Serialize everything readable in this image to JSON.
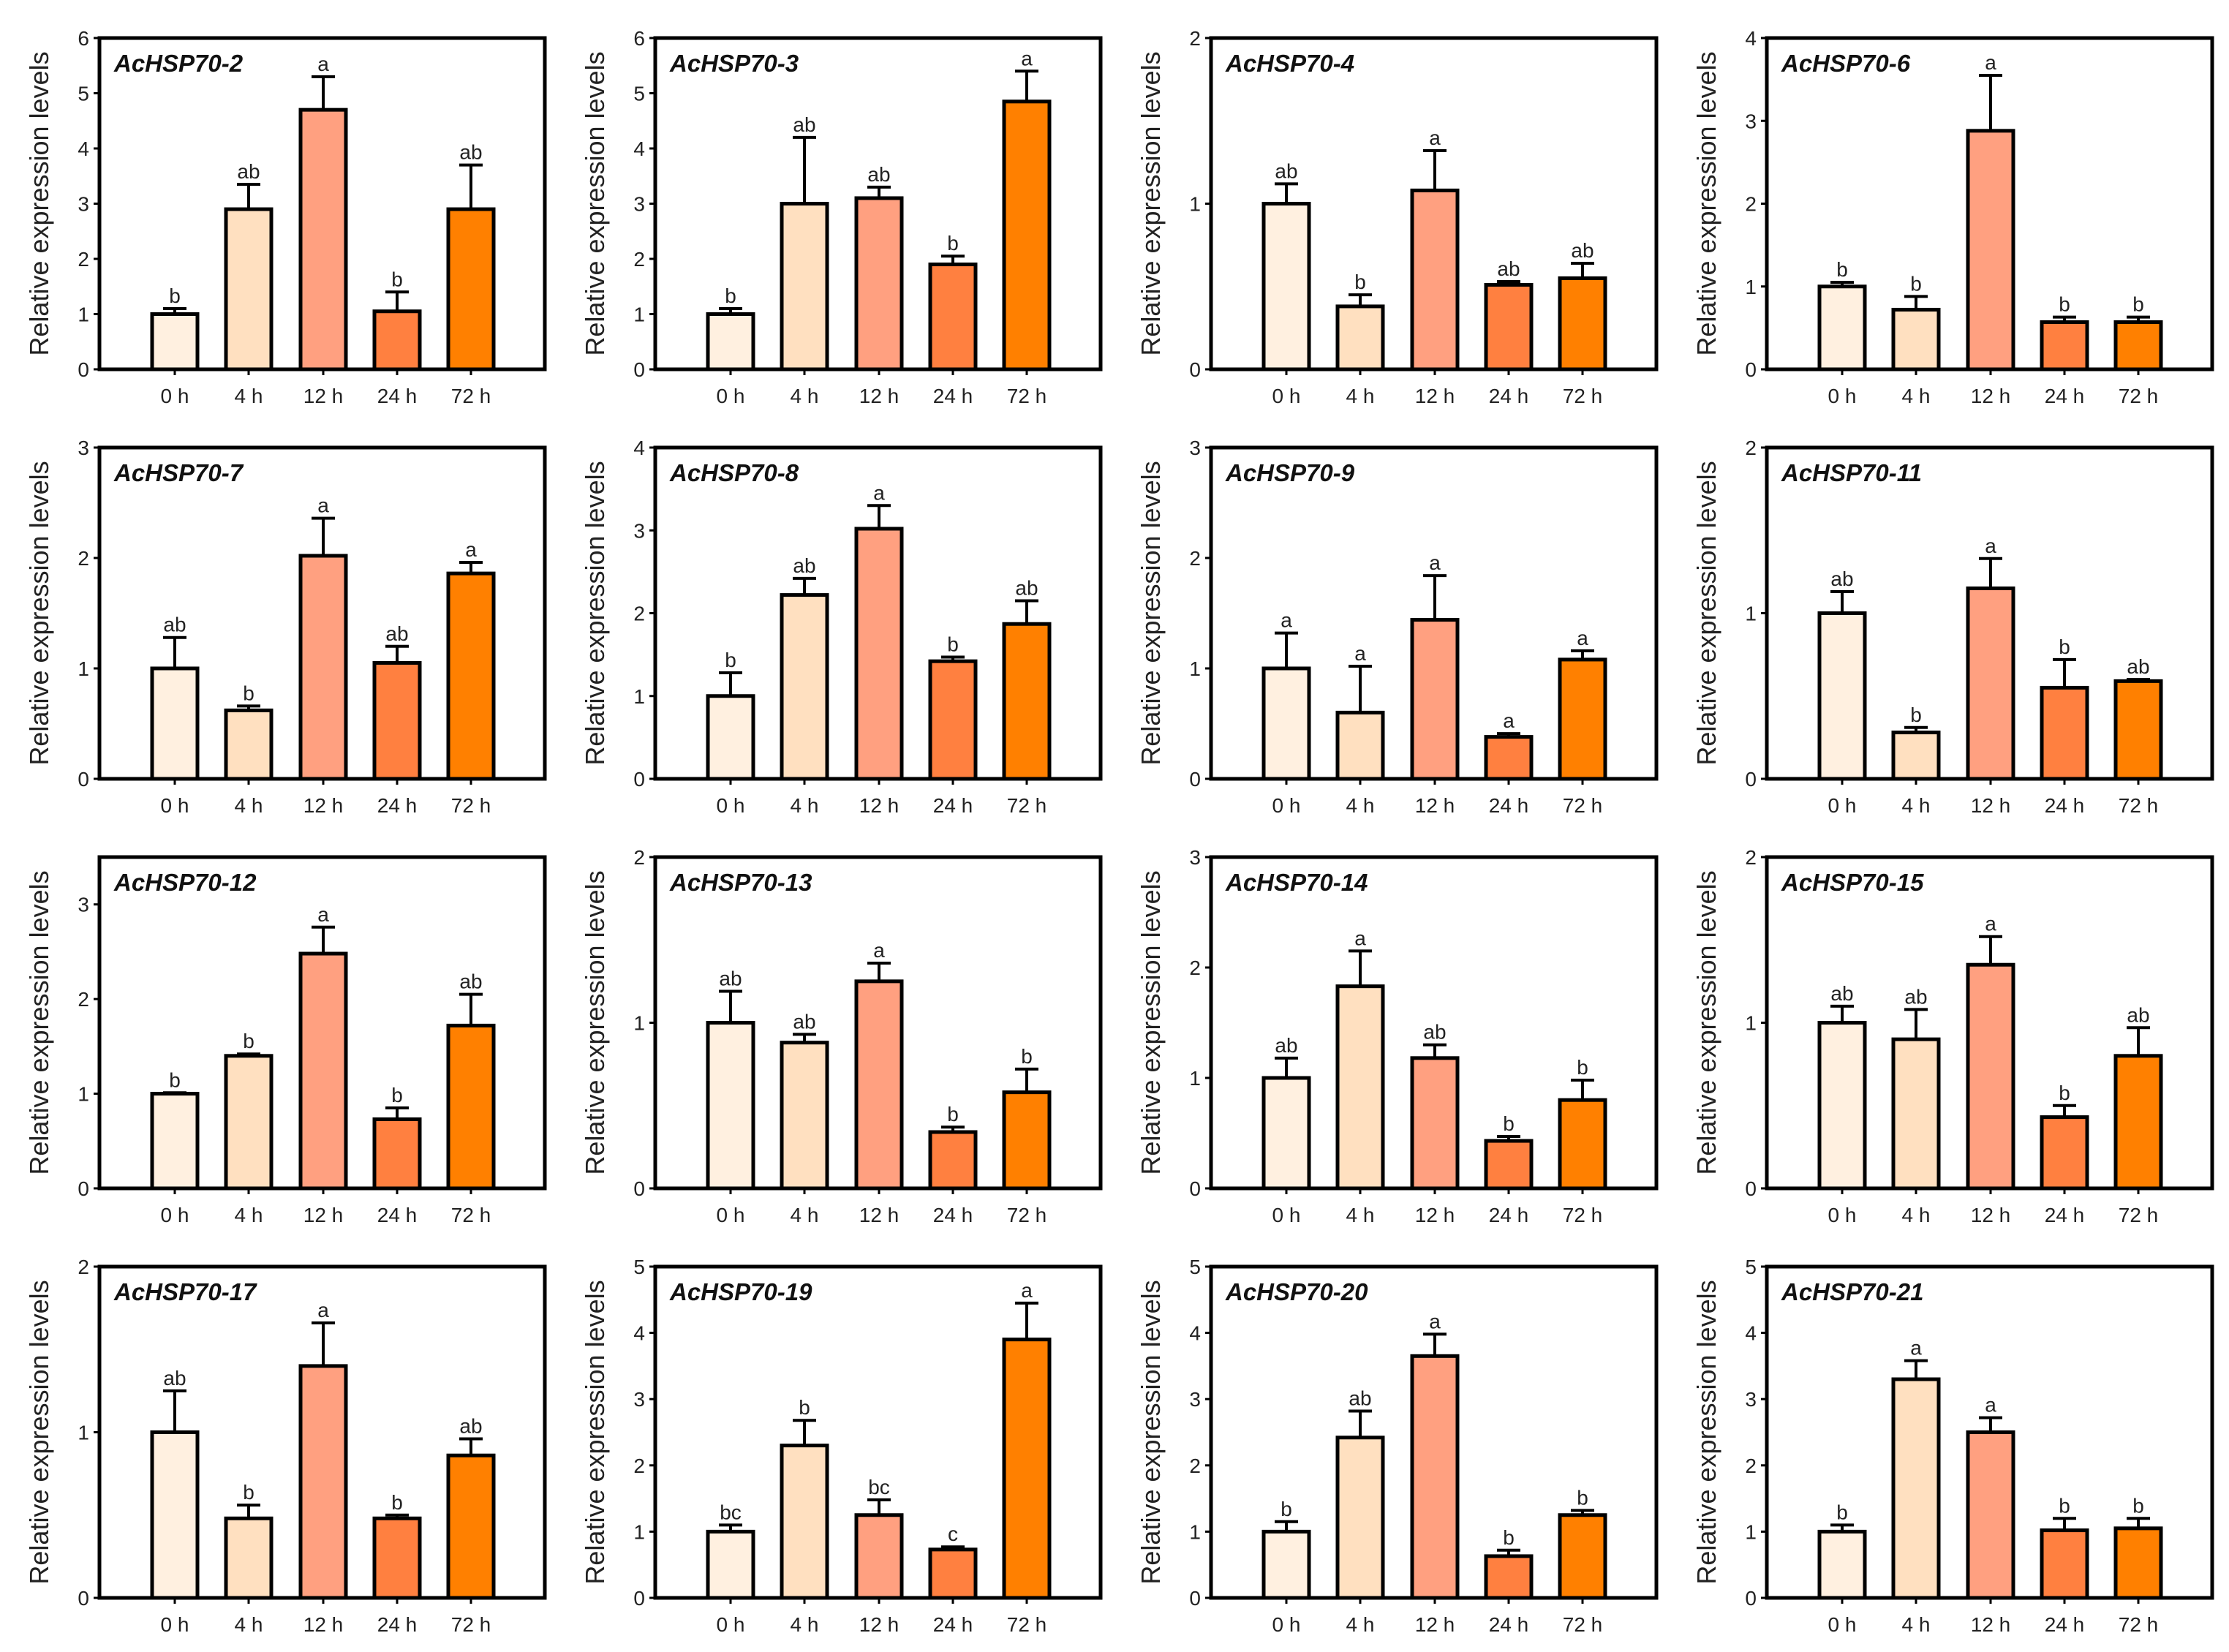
{
  "chart_data": {
    "type": "bar",
    "ylabel": "Relative expression levels",
    "categories": [
      "0 h",
      "4 h",
      "12 h",
      "24 h",
      "72 h"
    ],
    "bar_colors": [
      "#FFF0E0",
      "#FFE0C0",
      "#FFA080",
      "#FF8040",
      "#FF8000"
    ],
    "panels": [
      {
        "title": "AcHSP70-2",
        "ylim": [
          0,
          6
        ],
        "yticks": [
          0,
          1,
          2,
          3,
          4,
          5,
          6
        ],
        "values": [
          1.0,
          2.9,
          4.7,
          1.05,
          2.9
        ],
        "error_top": [
          1.1,
          3.35,
          5.3,
          1.4,
          3.7
        ],
        "letters": [
          "b",
          "ab",
          "a",
          "b",
          "ab"
        ]
      },
      {
        "title": "AcHSP70-3",
        "ylim": [
          0,
          6
        ],
        "yticks": [
          0,
          1,
          2,
          3,
          4,
          5,
          6
        ],
        "values": [
          1.0,
          3.0,
          3.1,
          1.9,
          4.85
        ],
        "error_top": [
          1.1,
          4.2,
          3.3,
          2.05,
          5.4
        ],
        "letters": [
          "b",
          "ab",
          "ab",
          "b",
          "a"
        ]
      },
      {
        "title": "AcHSP70-4",
        "ylim": [
          0,
          2
        ],
        "yticks": [
          0,
          1,
          2
        ],
        "values": [
          1.0,
          0.38,
          1.08,
          0.51,
          0.55
        ],
        "error_top": [
          1.12,
          0.45,
          1.32,
          0.53,
          0.64
        ],
        "letters": [
          "ab",
          "b",
          "a",
          "ab",
          "ab"
        ]
      },
      {
        "title": "AcHSP70-6",
        "ylim": [
          0,
          4
        ],
        "yticks": [
          0,
          1,
          2,
          3,
          4
        ],
        "values": [
          1.0,
          0.72,
          2.88,
          0.57,
          0.57
        ],
        "error_top": [
          1.05,
          0.88,
          3.55,
          0.63,
          0.63
        ],
        "letters": [
          "b",
          "b",
          "a",
          "b",
          "b"
        ]
      },
      {
        "title": "AcHSP70-7",
        "ylim": [
          0,
          3
        ],
        "yticks": [
          0,
          1,
          2,
          3
        ],
        "values": [
          1.0,
          0.62,
          2.02,
          1.05,
          1.86
        ],
        "error_top": [
          1.28,
          0.66,
          2.36,
          1.2,
          1.96
        ],
        "letters": [
          "ab",
          "b",
          "a",
          "ab",
          "a"
        ]
      },
      {
        "title": "AcHSP70-8",
        "ylim": [
          0,
          4
        ],
        "yticks": [
          0,
          1,
          2,
          3,
          4
        ],
        "values": [
          1.0,
          2.22,
          3.02,
          1.42,
          1.87
        ],
        "error_top": [
          1.28,
          2.42,
          3.3,
          1.47,
          2.15
        ],
        "letters": [
          "b",
          "ab",
          "a",
          "b",
          "ab"
        ]
      },
      {
        "title": "AcHSP70-9",
        "ylim": [
          0,
          3
        ],
        "yticks": [
          0,
          1,
          2,
          3
        ],
        "values": [
          1.0,
          0.6,
          1.44,
          0.38,
          1.08
        ],
        "error_top": [
          1.32,
          1.02,
          1.84,
          0.41,
          1.16
        ],
        "letters": [
          "a",
          "a",
          "a",
          "a",
          "a"
        ]
      },
      {
        "title": "AcHSP70-11",
        "ylim": [
          0,
          2
        ],
        "yticks": [
          0,
          1,
          2
        ],
        "values": [
          1.0,
          0.28,
          1.15,
          0.55,
          0.59
        ],
        "error_top": [
          1.13,
          0.31,
          1.33,
          0.72,
          0.6
        ],
        "letters": [
          "ab",
          "b",
          "a",
          "b",
          "ab"
        ]
      },
      {
        "title": "AcHSP70-12",
        "ylim": [
          0,
          3.5
        ],
        "yticks": [
          0,
          1,
          2,
          3
        ],
        "values": [
          1.0,
          1.4,
          2.48,
          0.73,
          1.72
        ],
        "error_top": [
          1.01,
          1.42,
          2.76,
          0.85,
          2.05
        ],
        "letters": [
          "b",
          "b",
          "a",
          "b",
          "ab"
        ]
      },
      {
        "title": "AcHSP70-13",
        "ylim": [
          0,
          2
        ],
        "yticks": [
          0,
          1,
          2
        ],
        "values": [
          1.0,
          0.88,
          1.25,
          0.34,
          0.58
        ],
        "error_top": [
          1.19,
          0.93,
          1.36,
          0.37,
          0.72
        ],
        "letters": [
          "ab",
          "ab",
          "a",
          "b",
          "b"
        ]
      },
      {
        "title": "AcHSP70-14",
        "ylim": [
          0,
          3
        ],
        "yticks": [
          0,
          1,
          2,
          3
        ],
        "values": [
          1.0,
          1.83,
          1.18,
          0.43,
          0.8
        ],
        "error_top": [
          1.18,
          2.15,
          1.3,
          0.47,
          0.98
        ],
        "letters": [
          "ab",
          "a",
          "ab",
          "b",
          "b"
        ]
      },
      {
        "title": "AcHSP70-15",
        "ylim": [
          0,
          2
        ],
        "yticks": [
          0,
          1,
          2
        ],
        "values": [
          1.0,
          0.9,
          1.35,
          0.43,
          0.8
        ],
        "error_top": [
          1.1,
          1.08,
          1.52,
          0.5,
          0.97
        ],
        "letters": [
          "ab",
          "ab",
          "a",
          "b",
          "ab"
        ]
      },
      {
        "title": "AcHSP70-17",
        "ylim": [
          0,
          2
        ],
        "yticks": [
          0,
          1,
          2
        ],
        "values": [
          1.0,
          0.48,
          1.4,
          0.48,
          0.86
        ],
        "error_top": [
          1.25,
          0.56,
          1.66,
          0.5,
          0.96
        ],
        "letters": [
          "ab",
          "b",
          "a",
          "b",
          "ab"
        ]
      },
      {
        "title": "AcHSP70-19",
        "ylim": [
          0,
          5
        ],
        "yticks": [
          0,
          1,
          2,
          3,
          4,
          5
        ],
        "values": [
          1.0,
          2.3,
          1.25,
          0.73,
          3.9
        ],
        "error_top": [
          1.1,
          2.68,
          1.48,
          0.77,
          4.45
        ],
        "letters": [
          "bc",
          "b",
          "bc",
          "c",
          "a"
        ]
      },
      {
        "title": "AcHSP70-20",
        "ylim": [
          0,
          5
        ],
        "yticks": [
          0,
          1,
          2,
          3,
          4,
          5
        ],
        "values": [
          1.0,
          2.42,
          3.65,
          0.63,
          1.25
        ],
        "error_top": [
          1.15,
          2.82,
          3.98,
          0.72,
          1.32
        ],
        "letters": [
          "b",
          "ab",
          "a",
          "b",
          "b"
        ]
      },
      {
        "title": "AcHSP70-21",
        "ylim": [
          0,
          5
        ],
        "yticks": [
          0,
          1,
          2,
          3,
          4,
          5
        ],
        "values": [
          1.0,
          3.3,
          2.5,
          1.02,
          1.05
        ],
        "error_top": [
          1.1,
          3.58,
          2.72,
          1.2,
          1.2
        ],
        "letters": [
          "b",
          "a",
          "a",
          "b",
          "b"
        ]
      }
    ]
  }
}
